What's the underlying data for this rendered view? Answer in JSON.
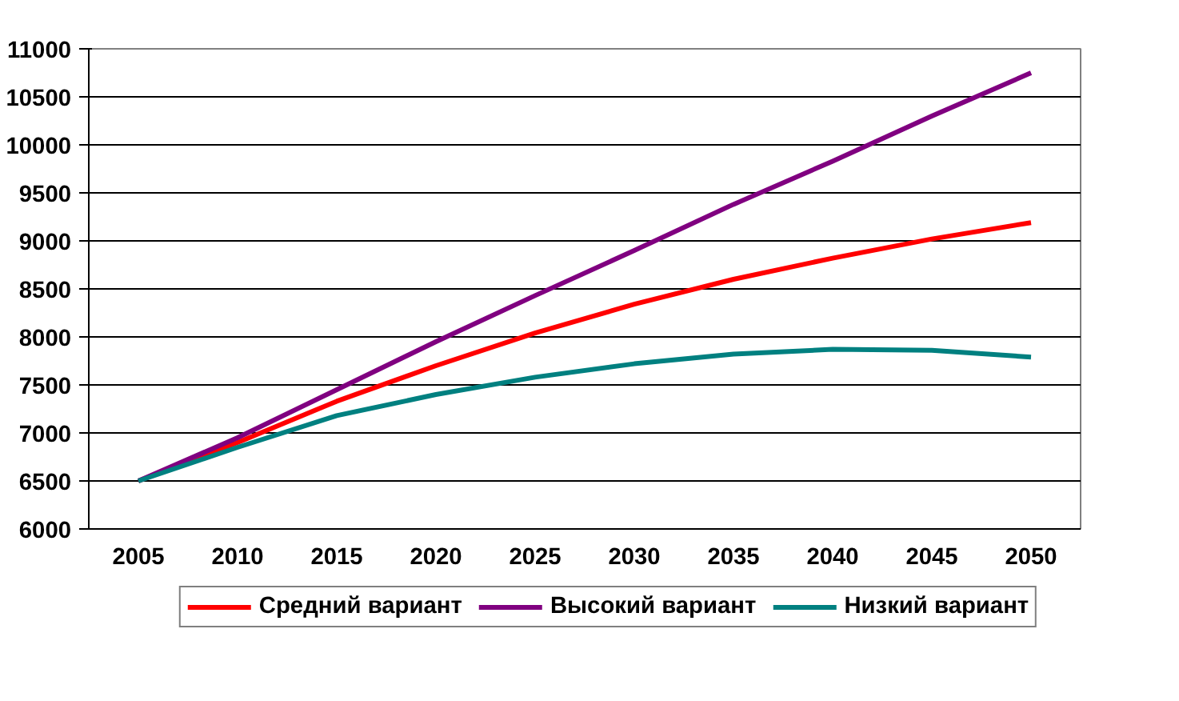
{
  "chart_data": {
    "type": "line",
    "categories": [
      "2005",
      "2010",
      "2015",
      "2020",
      "2025",
      "2030",
      "2035",
      "2040",
      "2045",
      "2050"
    ],
    "series": [
      {
        "name": "Средний вариант",
        "color": "#ff0000",
        "values": [
          6500,
          6900,
          7330,
          7700,
          8040,
          8340,
          8600,
          8820,
          9020,
          9190
        ]
      },
      {
        "name": "Высокий вариант",
        "color": "#800080",
        "values": [
          6500,
          6950,
          7450,
          7950,
          8430,
          8900,
          9380,
          9830,
          10300,
          10750
        ]
      },
      {
        "name": "Низкий вариант",
        "color": "#008080",
        "values": [
          6500,
          6850,
          7180,
          7400,
          7580,
          7720,
          7820,
          7870,
          7860,
          7790
        ]
      }
    ],
    "ylim": [
      6000,
      11000
    ],
    "yticks": [
      6000,
      6500,
      7000,
      7500,
      8000,
      8500,
      9000,
      9500,
      10000,
      10500,
      11000
    ],
    "grid": "y",
    "legend": "bottom",
    "marker": "none",
    "line_style": "solid"
  }
}
